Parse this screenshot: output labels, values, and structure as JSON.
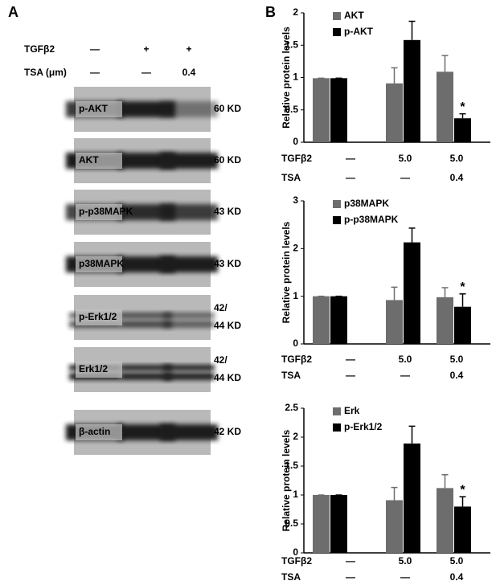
{
  "panel_a": {
    "label": "A",
    "treatments": [
      {
        "label": "TGFβ2",
        "values": [
          "—",
          "+",
          "+"
        ]
      },
      {
        "label": "TSA (μm)",
        "values": [
          "—",
          "—",
          "0.4"
        ]
      }
    ],
    "blots": [
      {
        "name": "p-AKT",
        "size": [
          "60 KD"
        ]
      },
      {
        "name": "AKT",
        "size": [
          "60 KD"
        ]
      },
      {
        "name": "p-p38MAPK",
        "size": [
          "43 KD"
        ]
      },
      {
        "name": "p38MAPK",
        "size": [
          "43 KD"
        ]
      },
      {
        "name": "p-Erk1/2",
        "size": [
          "42/",
          "44 KD"
        ]
      },
      {
        "name": "Erk1/2",
        "size": [
          "42/",
          "44 KD"
        ]
      },
      {
        "name": "β-actin",
        "size": [
          "42 KD"
        ]
      }
    ]
  },
  "panel_b": {
    "label": "B"
  },
  "chart_data": [
    {
      "type": "bar",
      "ylabel": "Relative protein levels",
      "categories": [
        null,
        null,
        null
      ],
      "series": [
        {
          "name": "AKT",
          "color": "#6d6d6d",
          "values": [
            0.99,
            0.91,
            1.09
          ],
          "errors": [
            0,
            0.24,
            0.25
          ]
        },
        {
          "name": "p-AKT",
          "color": "#000000",
          "values": [
            0.99,
            1.58,
            0.37
          ],
          "errors": [
            0,
            0.29,
            0.07
          ]
        }
      ],
      "ylim": [
        0,
        2
      ],
      "yticks": [
        0,
        0.5,
        1,
        1.5,
        2
      ],
      "legend": "upper left",
      "annotations": [
        {
          "text": "*",
          "series": 1,
          "index": 2
        }
      ],
      "conditions": [
        {
          "label": "TGFβ2",
          "values": [
            "—",
            "5.0",
            "5.0"
          ]
        },
        {
          "label": "TSA",
          "values": [
            "—",
            "—",
            "0.4"
          ]
        }
      ]
    },
    {
      "type": "bar",
      "ylabel": "Relative protein levels",
      "categories": [
        null,
        null,
        null
      ],
      "series": [
        {
          "name": "p38MAPK",
          "color": "#6d6d6d",
          "values": [
            1.0,
            0.92,
            0.98
          ],
          "errors": [
            0,
            0.27,
            0.2
          ]
        },
        {
          "name": "p-p38MAPK",
          "color": "#000000",
          "values": [
            1.0,
            2.13,
            0.78
          ],
          "errors": [
            0,
            0.3,
            0.27
          ]
        }
      ],
      "ylim": [
        0,
        3
      ],
      "yticks": [
        0,
        1,
        2,
        3
      ],
      "legend": "upper left",
      "annotations": [
        {
          "text": "*",
          "series": 1,
          "index": 2
        }
      ],
      "conditions": [
        {
          "label": "TGFβ2",
          "values": [
            "—",
            "5.0",
            "5.0"
          ]
        },
        {
          "label": "TSA",
          "values": [
            "—",
            "—",
            "0.4"
          ]
        }
      ]
    },
    {
      "type": "bar",
      "ylabel": "Relative protein levels",
      "categories": [
        null,
        null,
        null
      ],
      "series": [
        {
          "name": "Erk",
          "color": "#6d6d6d",
          "values": [
            1.0,
            0.91,
            1.12
          ],
          "errors": [
            0,
            0.22,
            0.23
          ]
        },
        {
          "name": "p-Erk1/2",
          "color": "#000000",
          "values": [
            1.0,
            1.89,
            0.8
          ],
          "errors": [
            0,
            0.3,
            0.17
          ]
        }
      ],
      "ylim": [
        0,
        2.5
      ],
      "yticks": [
        0,
        0.5,
        1,
        1.5,
        2,
        2.5
      ],
      "legend": "upper left",
      "annotations": [
        {
          "text": "*",
          "series": 1,
          "index": 2
        }
      ],
      "conditions": [
        {
          "label": "TGFβ2",
          "values": [
            "—",
            "5.0",
            "5.0"
          ]
        },
        {
          "label": "TSA",
          "values": [
            "—",
            "—",
            "0.4"
          ]
        }
      ]
    }
  ]
}
